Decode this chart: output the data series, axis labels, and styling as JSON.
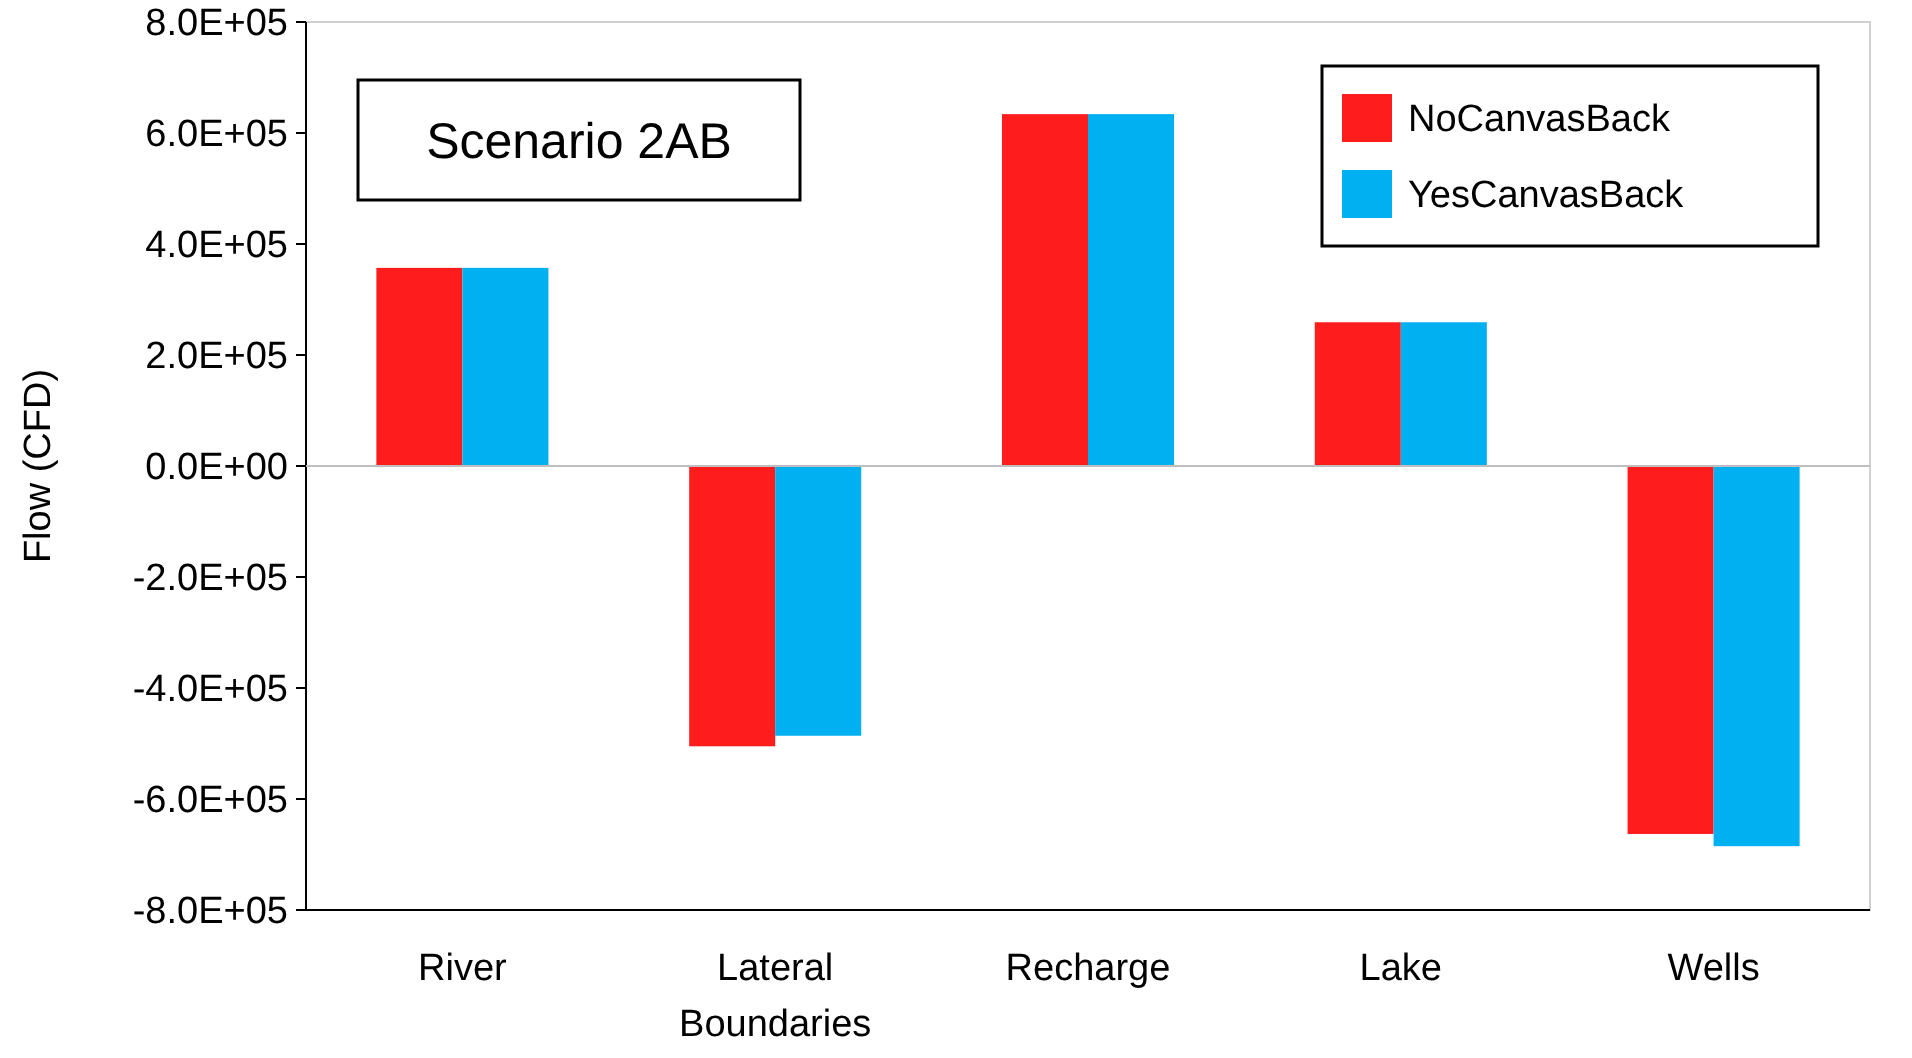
{
  "chart_data": {
    "type": "bar",
    "title": "Scenario 2AB",
    "ylabel": "Flow (CFD)",
    "categories": [
      "River",
      "Lateral Boundaries",
      "Recharge",
      "Lake",
      "Wells"
    ],
    "series": [
      {
        "name": "NoCanvasBack",
        "color": "#ff1c1c",
        "values": [
          357000,
          -505000,
          634000,
          259000,
          -663000
        ]
      },
      {
        "name": "YesCanvasBack",
        "color": "#00b0f0",
        "values": [
          357000,
          -486000,
          634000,
          259000,
          -685000
        ]
      }
    ],
    "ylim": [
      -800000,
      800000
    ],
    "yticks": [
      {
        "value": -800000,
        "label": "-8.0E+05"
      },
      {
        "value": -600000,
        "label": "-6.0E+05"
      },
      {
        "value": -400000,
        "label": "-4.0E+05"
      },
      {
        "value": -200000,
        "label": "-2.0E+05"
      },
      {
        "value": 0,
        "label": "0.0E+00"
      },
      {
        "value": 200000,
        "label": "2.0E+05"
      },
      {
        "value": 400000,
        "label": "4.0E+05"
      },
      {
        "value": 600000,
        "label": "6.0E+05"
      },
      {
        "value": 800000,
        "label": "8.0E+05"
      }
    ],
    "legend": "top right"
  }
}
